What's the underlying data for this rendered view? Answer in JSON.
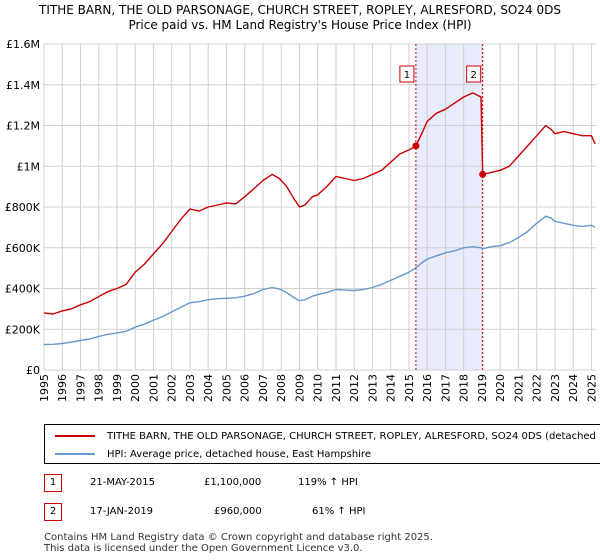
{
  "title": "TITHE BARN, THE OLD PARSONAGE, CHURCH STREET, ROPLEY, ALRESFORD, SO24 0DS",
  "subtitle": "Price paid vs. HM Land Registry's House Price Index (HPI)",
  "chart_data": {
    "type": "line",
    "xlim": [
      1995,
      2025.25
    ],
    "ylim": [
      0,
      1600000
    ],
    "yticks": [
      {
        "value": 0,
        "label": "£0"
      },
      {
        "value": 200000,
        "label": "£200K"
      },
      {
        "value": 400000,
        "label": "£400K"
      },
      {
        "value": 600000,
        "label": "£600K"
      },
      {
        "value": 800000,
        "label": "£800K"
      },
      {
        "value": 1000000,
        "label": "£1M"
      },
      {
        "value": 1200000,
        "label": "£1.2M"
      },
      {
        "value": 1400000,
        "label": "£1.4M"
      },
      {
        "value": 1600000,
        "label": "£1.6M"
      }
    ],
    "xticks": [
      "1995",
      "1996",
      "1997",
      "1998",
      "1999",
      "2000",
      "2001",
      "2002",
      "2003",
      "2004",
      "2005",
      "2006",
      "2007",
      "2008",
      "2009",
      "2010",
      "2011",
      "2012",
      "2013",
      "2014",
      "2015",
      "2016",
      "2017",
      "2018",
      "2019",
      "2020",
      "2021",
      "2022",
      "2023",
      "2024",
      "2025"
    ],
    "grid": true,
    "shaded_period": [
      2015.38,
      2019.04
    ],
    "series": [
      {
        "name": "TITHE BARN, THE OLD PARSONAGE, CHURCH STREET, ROPLEY, ALRESFORD, SO24 0DS (detached house)",
        "color": "#cc0000",
        "x": [
          1995.0,
          1995.5,
          1996.0,
          1996.5,
          1997.0,
          1997.5,
          1998.0,
          1998.5,
          1999.0,
          1999.5,
          2000.0,
          2000.5,
          2001.0,
          2001.5,
          2002.0,
          2002.5,
          2003.0,
          2003.5,
          2004.0,
          2004.5,
          2005.0,
          2005.5,
          2006.0,
          2006.5,
          2007.0,
          2007.5,
          2007.9,
          2008.3,
          2008.7,
          2009.0,
          2009.3,
          2009.7,
          2010.0,
          2010.5,
          2011.0,
          2011.5,
          2012.0,
          2012.5,
          2013.0,
          2013.5,
          2014.0,
          2014.5,
          2015.0,
          2015.38,
          2015.7,
          2016.0,
          2016.5,
          2017.0,
          2017.5,
          2018.0,
          2018.5,
          2018.95,
          2019.04,
          2019.5,
          2020.0,
          2020.5,
          2021.0,
          2021.5,
          2022.0,
          2022.5,
          2022.8,
          2023.0,
          2023.5,
          2024.0,
          2024.5,
          2025.0,
          2025.2
        ],
        "values": [
          280000,
          275000,
          290000,
          300000,
          320000,
          335000,
          360000,
          385000,
          400000,
          420000,
          480000,
          520000,
          570000,
          620000,
          680000,
          740000,
          790000,
          780000,
          800000,
          810000,
          820000,
          815000,
          850000,
          890000,
          930000,
          960000,
          940000,
          900000,
          840000,
          800000,
          810000,
          850000,
          860000,
          900000,
          950000,
          940000,
          930000,
          940000,
          960000,
          980000,
          1020000,
          1060000,
          1080000,
          1100000,
          1160000,
          1220000,
          1260000,
          1280000,
          1310000,
          1340000,
          1360000,
          1340000,
          960000,
          970000,
          980000,
          1000000,
          1050000,
          1100000,
          1150000,
          1200000,
          1180000,
          1160000,
          1170000,
          1160000,
          1150000,
          1150000,
          1110000
        ]
      },
      {
        "name": "HPI: Average price, detached house, East Hampshire",
        "color": "#6699cc",
        "x": [
          1995.0,
          1995.5,
          1996.0,
          1996.5,
          1997.0,
          1997.5,
          1998.0,
          1998.5,
          1999.0,
          1999.5,
          2000.0,
          2000.5,
          2001.0,
          2001.5,
          2002.0,
          2002.5,
          2003.0,
          2003.5,
          2004.0,
          2004.5,
          2005.0,
          2005.5,
          2006.0,
          2006.5,
          2007.0,
          2007.5,
          2007.9,
          2008.3,
          2008.7,
          2009.0,
          2009.3,
          2009.7,
          2010.0,
          2010.5,
          2011.0,
          2011.5,
          2012.0,
          2012.5,
          2013.0,
          2013.5,
          2014.0,
          2014.5,
          2015.0,
          2015.38,
          2015.7,
          2016.0,
          2016.5,
          2017.0,
          2017.5,
          2018.0,
          2018.5,
          2018.95,
          2019.04,
          2019.5,
          2020.0,
          2020.5,
          2021.0,
          2021.5,
          2022.0,
          2022.5,
          2022.8,
          2023.0,
          2023.5,
          2024.0,
          2024.5,
          2025.0,
          2025.2
        ],
        "values": [
          125000,
          126000,
          130000,
          137000,
          145000,
          152000,
          165000,
          175000,
          182000,
          190000,
          210000,
          225000,
          245000,
          262000,
          285000,
          308000,
          330000,
          335000,
          345000,
          350000,
          352000,
          355000,
          362000,
          375000,
          395000,
          405000,
          398000,
          380000,
          355000,
          340000,
          345000,
          362000,
          370000,
          380000,
          395000,
          392000,
          390000,
          395000,
          405000,
          420000,
          440000,
          460000,
          480000,
          502000,
          525000,
          545000,
          560000,
          575000,
          585000,
          600000,
          605000,
          600000,
          595000,
          605000,
          610000,
          625000,
          650000,
          680000,
          720000,
          755000,
          745000,
          730000,
          720000,
          710000,
          705000,
          710000,
          700000
        ]
      }
    ],
    "markers": [
      {
        "label": "1",
        "x": 2015.38,
        "y": 1100000
      },
      {
        "label": "2",
        "x": 2019.04,
        "y": 960000
      }
    ]
  },
  "legend": {
    "series1": "TITHE BARN, THE OLD PARSONAGE, CHURCH STREET, ROPLEY, ALRESFORD, SO24 0DS (detached house)",
    "series2": "HPI: Average price, detached house, East Hampshire"
  },
  "sales": [
    {
      "num": "1",
      "date": "21-MAY-2015",
      "price": "£1,100,000",
      "hpi": "119% ↑ HPI"
    },
    {
      "num": "2",
      "date": "17-JAN-2019",
      "price": "£960,000",
      "hpi": "61% ↑ HPI"
    }
  ],
  "footer": {
    "line1": "Contains HM Land Registry data © Crown copyright and database right 2025.",
    "line2": "This data is licensed under the Open Government Licence v3.0."
  },
  "colors": {
    "price_line": "#cc0000",
    "hpi_line": "#6699cc",
    "shade": "#e8ecfa",
    "grid": "#d0d0d0"
  }
}
